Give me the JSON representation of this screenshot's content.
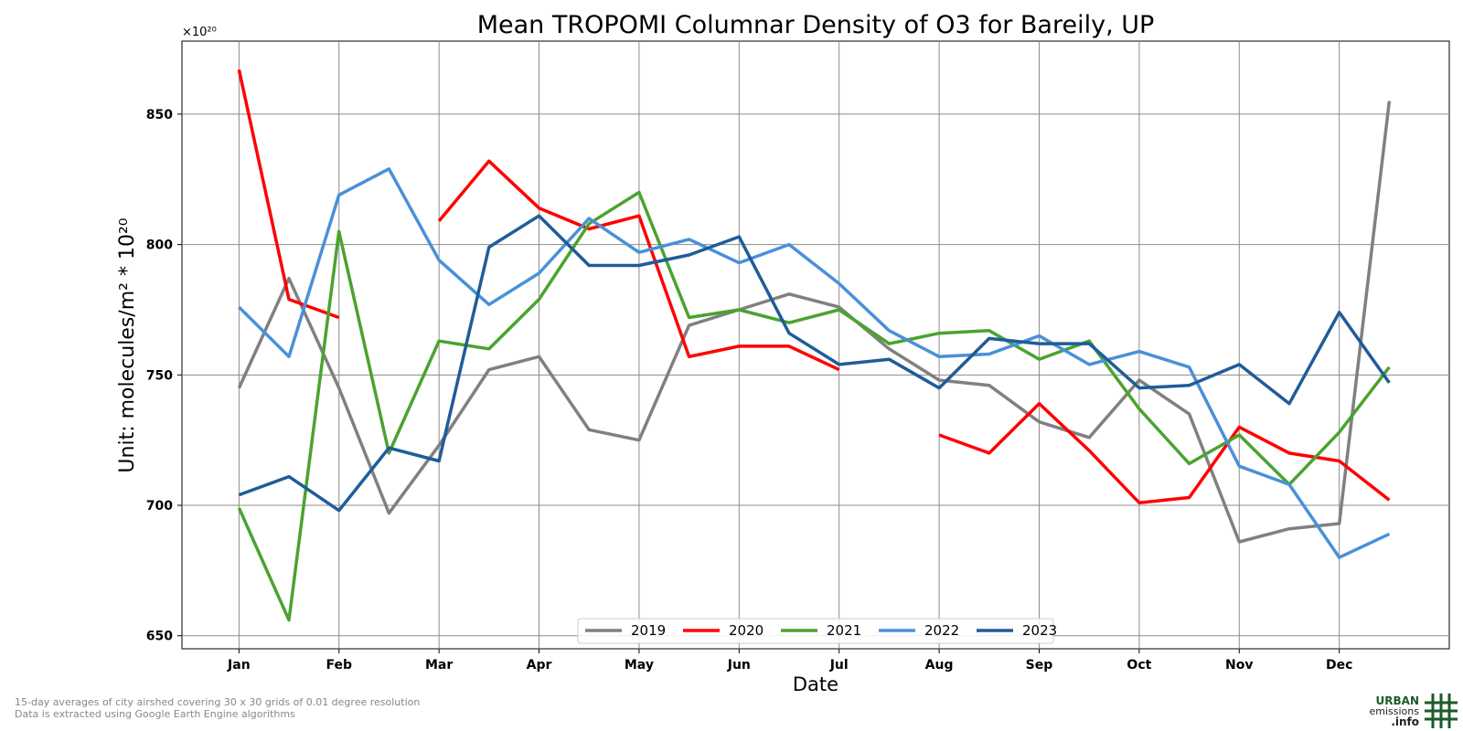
{
  "chart_data": {
    "type": "line",
    "title": "Mean TROPOMI Columnar Density of O3 for Bareily, UP",
    "xlabel": "Date",
    "ylabel": "Unit: molecules/m² * 10²⁰",
    "y_offset_label": "×10²⁰",
    "ylim": [
      645,
      878
    ],
    "yticks": [
      650,
      700,
      750,
      800,
      850
    ],
    "xlim": [
      -0.57,
      12.1
    ],
    "month_ticks": [
      "Jan",
      "Feb",
      "Mar",
      "Apr",
      "May",
      "Jun",
      "Jul",
      "Aug",
      "Sep",
      "Oct",
      "Nov",
      "Dec"
    ],
    "x": [
      0,
      0.5,
      1,
      1.5,
      2,
      2.5,
      3,
      3.5,
      4,
      4.5,
      5,
      5.5,
      6,
      6.5,
      7,
      7.5,
      8,
      8.5,
      9,
      9.5,
      10,
      10.5,
      11,
      11.5
    ],
    "grid": true,
    "legend_position": "bottom-center",
    "series": [
      {
        "name": "2019",
        "color": "#808080",
        "values": [
          745,
          787,
          745,
          697,
          723,
          752,
          757,
          729,
          725,
          769,
          775,
          781,
          776,
          760,
          748,
          746,
          732,
          726,
          748,
          735,
          686,
          691,
          693,
          855
        ]
      },
      {
        "name": "2020",
        "color": "#ff0000",
        "values": [
          867,
          779,
          772,
          null,
          809,
          832,
          814,
          806,
          811,
          757,
          761,
          761,
          752,
          null,
          727,
          720,
          739,
          721,
          701,
          703,
          730,
          720,
          717,
          702
        ]
      },
      {
        "name": "2021",
        "color": "#4aa32f",
        "values": [
          699,
          656,
          805,
          720,
          763,
          760,
          779,
          808,
          820,
          772,
          775,
          770,
          775,
          762,
          766,
          767,
          756,
          763,
          737,
          716,
          727,
          708,
          728,
          753
        ]
      },
      {
        "name": "2022",
        "color": "#4a90d9",
        "values": [
          776,
          757,
          819,
          829,
          794,
          777,
          789,
          810,
          797,
          802,
          793,
          800,
          785,
          767,
          757,
          758,
          765,
          754,
          759,
          753,
          715,
          708,
          680,
          689
        ]
      },
      {
        "name": "2023",
        "color": "#1f5c99",
        "values": [
          704,
          711,
          698,
          722,
          717,
          799,
          811,
          792,
          792,
          796,
          803,
          766,
          754,
          756,
          745,
          764,
          762,
          762,
          745,
          746,
          754,
          739,
          774,
          747
        ]
      }
    ]
  },
  "footnotes": [
    "15-day averages of city airshed covering 30 x 30 grids of 0.01 degree resolution",
    "Data is extracted using Google Earth Engine algorithms"
  ],
  "logo": {
    "line1": "URBAN",
    "line2": "emissions",
    "line3": ".info",
    "color": "#1a5c2a"
  }
}
